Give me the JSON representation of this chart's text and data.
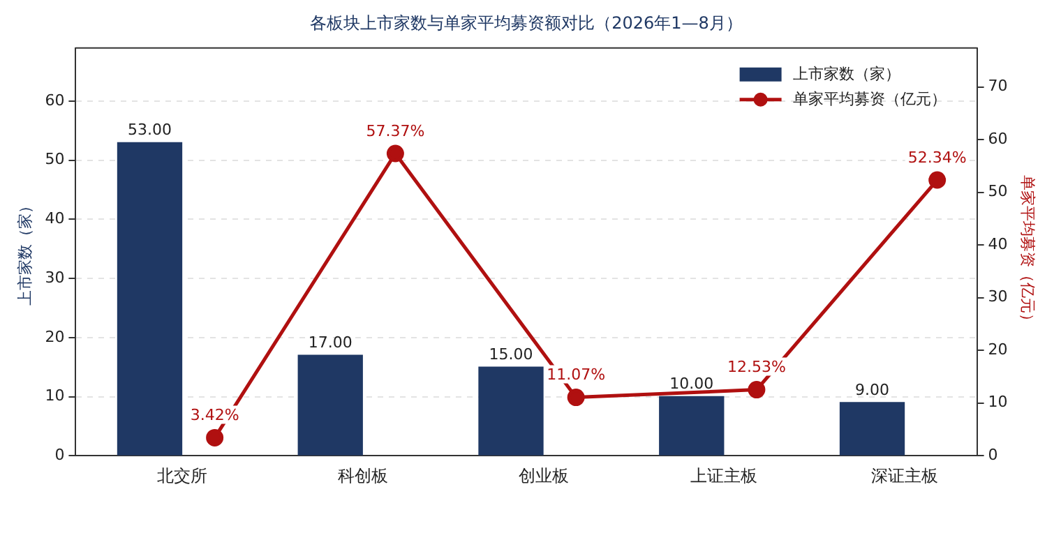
{
  "chart_data": {
    "type": "bar",
    "title": "各板块上市家数与单家平均募资额对比（2026年1—8月）",
    "categories": [
      "北交所",
      "科创板",
      "创业板",
      "上证主板",
      "深证主板"
    ],
    "ylabel": "上市家数（家）",
    "y2label": "单家平均募资（亿元）",
    "ylim": [
      0,
      69
    ],
    "yticks": [
      0,
      10,
      20,
      30,
      40,
      50,
      60
    ],
    "y2lim": [
      0,
      77.4
    ],
    "y2ticks": [
      0,
      10,
      20,
      30,
      40,
      50,
      60,
      70
    ],
    "grid": "y",
    "legend": "top right",
    "marker": "circle",
    "line_style": "solid",
    "series": [
      {
        "name": "上市家数（家）",
        "color": "#1f3864",
        "values": [
          53,
          17,
          15,
          10,
          9
        ],
        "value_labels": [
          "53.00",
          "17.00",
          "15.00",
          "10.00",
          "9.00"
        ]
      },
      {
        "name": "单家平均募资（亿元）",
        "type": "line",
        "axis": "y2",
        "color": "#b01010",
        "values": [
          3.42,
          57.37,
          11.07,
          12.53,
          52.34
        ],
        "value_labels": [
          "3.42%",
          "57.37%",
          "11.07%",
          "12.53%",
          "52.34%"
        ]
      }
    ]
  }
}
